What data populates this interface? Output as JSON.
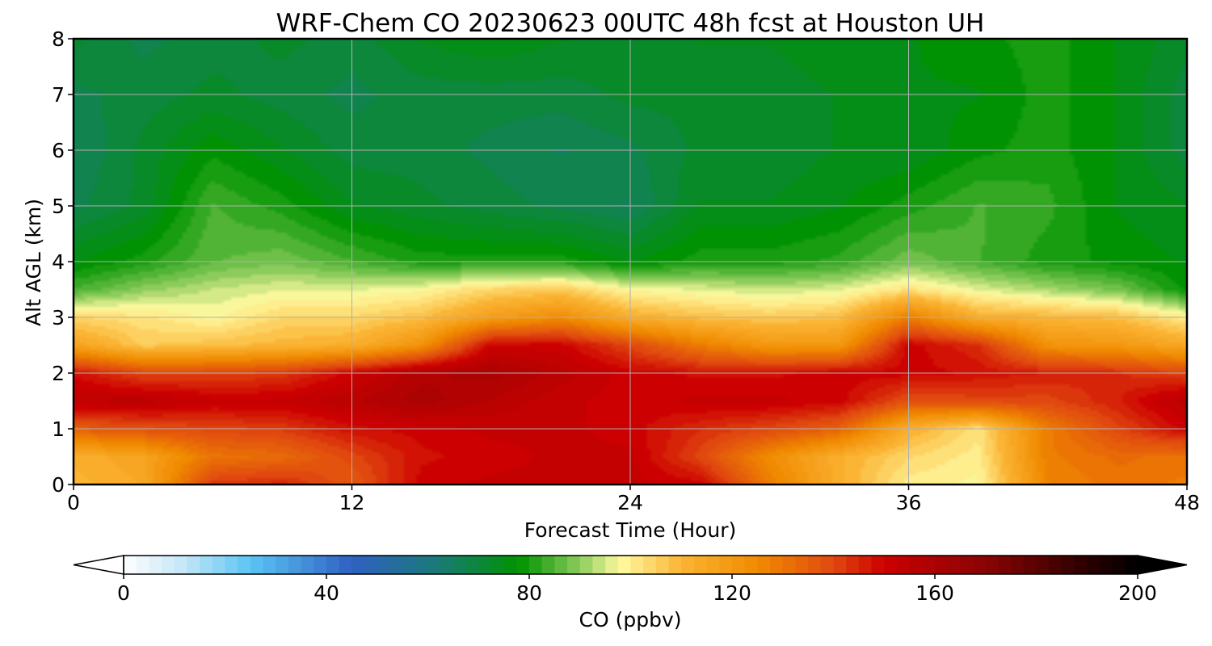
{
  "chart_data": {
    "type": "heatmap",
    "title": "WRF-Chem CO  20230623 00UTC 48h fcst at Houston UH",
    "xlabel": "Forecast Time (Hour)",
    "ylabel": "Alt AGL (km)",
    "xlim": [
      0,
      48
    ],
    "ylim": [
      0,
      8
    ],
    "x_ticks": [
      0,
      12,
      24,
      36,
      48
    ],
    "y_ticks": [
      0,
      1,
      2,
      3,
      4,
      5,
      6,
      7,
      8
    ],
    "grid": true,
    "x": [
      0,
      3,
      6,
      9,
      12,
      15,
      18,
      21,
      24,
      27,
      30,
      33,
      36,
      39,
      42,
      45,
      48
    ],
    "y": [
      0,
      0.5,
      1,
      1.5,
      2,
      2.5,
      3,
      3.5,
      4,
      5,
      6,
      7,
      8
    ],
    "z_rows_by_altitude": [
      [
        110,
        114,
        142,
        145,
        136,
        150,
        152,
        152,
        152,
        150,
        128,
        112,
        100,
        98,
        126,
        130,
        128
      ],
      [
        112,
        116,
        130,
        132,
        140,
        148,
        150,
        152,
        152,
        140,
        124,
        112,
        104,
        100,
        128,
        132,
        130
      ],
      [
        135,
        138,
        140,
        142,
        148,
        150,
        152,
        152,
        150,
        144,
        140,
        134,
        112,
        102,
        128,
        140,
        150
      ],
      [
        154,
        155,
        152,
        152,
        156,
        160,
        156,
        152,
        150,
        152,
        152,
        150,
        138,
        140,
        140,
        146,
        156
      ],
      [
        148,
        140,
        140,
        142,
        150,
        158,
        160,
        155,
        150,
        148,
        148,
        150,
        150,
        148,
        146,
        144,
        140
      ],
      [
        116,
        106,
        108,
        110,
        112,
        122,
        150,
        150,
        140,
        128,
        120,
        120,
        150,
        144,
        122,
        120,
        114
      ],
      [
        104,
        102,
        98,
        104,
        104,
        108,
        118,
        124,
        112,
        108,
        106,
        108,
        128,
        112,
        110,
        108,
        100
      ],
      [
        84,
        90,
        94,
        96,
        96,
        98,
        104,
        106,
        98,
        96,
        94,
        96,
        102,
        96,
        92,
        88,
        78
      ],
      [
        76,
        80,
        86,
        88,
        84,
        80,
        80,
        80,
        76,
        80,
        80,
        82,
        88,
        84,
        80,
        78,
        76
      ],
      [
        68,
        72,
        84,
        80,
        74,
        72,
        70,
        68,
        66,
        74,
        74,
        76,
        80,
        84,
        82,
        76,
        74
      ],
      [
        66,
        72,
        78,
        74,
        70,
        70,
        68,
        66,
        68,
        72,
        72,
        74,
        74,
        78,
        80,
        76,
        70
      ],
      [
        68,
        70,
        72,
        70,
        68,
        70,
        70,
        70,
        72,
        72,
        72,
        74,
        76,
        76,
        80,
        76,
        70
      ],
      [
        72,
        68,
        70,
        72,
        70,
        74,
        76,
        74,
        72,
        74,
        74,
        76,
        76,
        78,
        80,
        76,
        72
      ]
    ],
    "colorbar": {
      "label": "CO  (ppbv)",
      "min": 0,
      "max": 200,
      "ticks": [
        0,
        40,
        80,
        120,
        160,
        200
      ],
      "extend": "both",
      "stops": [
        {
          "v": 0,
          "c": "#ffffff"
        },
        {
          "v": 12,
          "c": "#c2e6f6"
        },
        {
          "v": 25,
          "c": "#5bc4f4"
        },
        {
          "v": 45,
          "c": "#2f60c2"
        },
        {
          "v": 62,
          "c": "#1a7a78"
        },
        {
          "v": 78,
          "c": "#009300"
        },
        {
          "v": 90,
          "c": "#8ccc5c"
        },
        {
          "v": 98,
          "c": "#fffaa0"
        },
        {
          "v": 110,
          "c": "#fbb434"
        },
        {
          "v": 125,
          "c": "#f08a00"
        },
        {
          "v": 140,
          "c": "#e04810"
        },
        {
          "v": 150,
          "c": "#cc0000"
        },
        {
          "v": 170,
          "c": "#8a0404"
        },
        {
          "v": 190,
          "c": "#2a0000"
        },
        {
          "v": 200,
          "c": "#000000"
        }
      ]
    }
  }
}
